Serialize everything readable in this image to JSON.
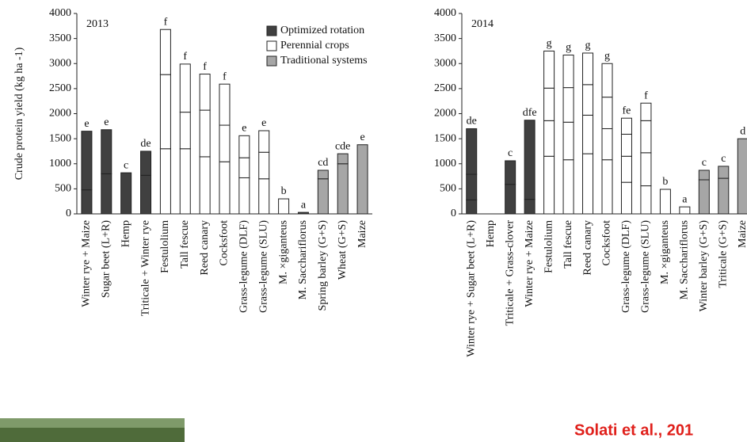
{
  "chart_data": [
    {
      "type": "bar",
      "stacked": true,
      "title": "2013",
      "ylabel": "Crude protein yield (kg ha -1)",
      "ylim": [
        0,
        4000
      ],
      "yticks": [
        0,
        500,
        1000,
        1500,
        2000,
        2500,
        3000,
        3500,
        4000
      ],
      "legend": [
        {
          "name": "Optimized rotation",
          "color": "#404040"
        },
        {
          "name": "Perennial crops",
          "color": "#ffffff"
        },
        {
          "name": "Traditional systems",
          "color": "#a6a6a6"
        }
      ],
      "categories": [
        "Winter rye + Maize",
        "Sugar beet (L+R)",
        "Hemp",
        "Triticale + Winter rye",
        "Festulolium",
        "Tall fescue",
        "Reed canary",
        "Cocksfoot",
        "Grass-legume (DLF)",
        "Grass-legume (SLU)",
        "M. ×giganteus",
        "M. Sacchariflorus",
        "Spring barley (G+S)",
        "Wheat (G+S)",
        "Maize"
      ],
      "colors": [
        "#404040",
        "#404040",
        "#404040",
        "#404040",
        "#ffffff",
        "#ffffff",
        "#ffffff",
        "#ffffff",
        "#ffffff",
        "#ffffff",
        "#ffffff",
        "#404040",
        "#a6a6a6",
        "#a6a6a6",
        "#a6a6a6"
      ],
      "segments": [
        [
          480,
          1170
        ],
        [
          800,
          880
        ],
        [
          820
        ],
        [
          770,
          480
        ],
        [
          1300,
          1480,
          900
        ],
        [
          1300,
          730,
          960
        ],
        [
          1140,
          930,
          720
        ],
        [
          1040,
          730,
          820
        ],
        [
          720,
          400,
          440
        ],
        [
          700,
          530,
          430
        ],
        [
          300
        ],
        [
          30
        ],
        [
          700,
          170
        ],
        [
          1000,
          200
        ],
        [
          1380
        ]
      ],
      "labels": [
        "e",
        "e",
        "c",
        "de",
        "f",
        "f",
        "f",
        "f",
        "e",
        "e",
        "b",
        "a",
        "cd",
        "cde",
        "e"
      ]
    },
    {
      "type": "bar",
      "stacked": true,
      "title": "2014",
      "ylim": [
        0,
        4000
      ],
      "yticks": [
        0,
        500,
        1000,
        1500,
        2000,
        2500,
        3000,
        3500,
        4000
      ],
      "categories": [
        "Winter rye + Sugar beet (L+R)",
        "Hemp",
        "Triticale + Grass-clover",
        "Winter rye + Maize",
        "Festulolium",
        "Tall fescue",
        "Reed canary",
        "Cocksfoot",
        "Grass-legume (DLF)",
        "Grass-legume (SLU)",
        "M. ×giganteus",
        "M. Sacchariflorus",
        "Winter barley (G+S)",
        "Triticale (G+S)",
        "Maize"
      ],
      "colors": [
        "#404040",
        "#404040",
        "#404040",
        "#404040",
        "#ffffff",
        "#ffffff",
        "#ffffff",
        "#ffffff",
        "#ffffff",
        "#ffffff",
        "#ffffff",
        "#ffffff",
        "#a6a6a6",
        "#a6a6a6",
        "#a6a6a6"
      ],
      "segments": [
        [
          280,
          510,
          910
        ],
        null,
        [
          590,
          470
        ],
        [
          290,
          1580
        ],
        [
          1150,
          710,
          650,
          740
        ],
        [
          1080,
          750,
          690,
          650
        ],
        [
          1200,
          770,
          610,
          630
        ],
        [
          1080,
          620,
          630,
          670
        ],
        [
          630,
          520,
          440,
          320
        ],
        [
          560,
          660,
          640,
          350
        ],
        [
          490
        ],
        [
          140
        ],
        [
          680,
          190
        ],
        [
          710,
          240
        ],
        [
          1500
        ]
      ],
      "labels": [
        "de",
        null,
        "c",
        "dfe",
        "g",
        "g",
        "g",
        "g",
        "fe",
        "f",
        "b",
        "a",
        "c",
        "c",
        "d"
      ]
    }
  ],
  "citation": "Solati et al., 201"
}
